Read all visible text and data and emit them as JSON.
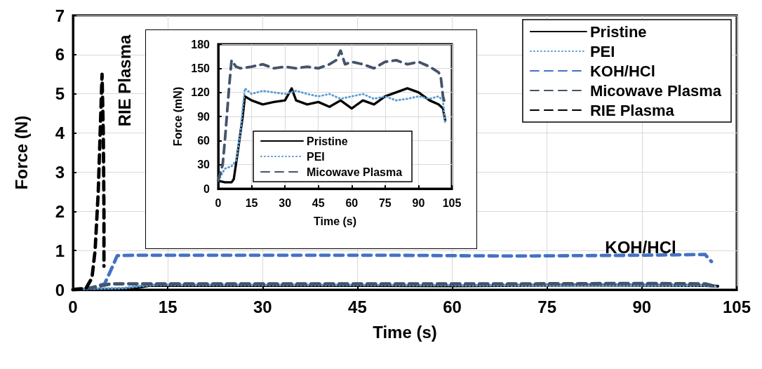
{
  "chart_data": [
    {
      "type": "line",
      "xlabel": "Time (s)",
      "ylabel": "Force (N)",
      "xlim": [
        0,
        105
      ],
      "xticks": [
        0,
        15,
        30,
        45,
        60,
        75,
        90,
        105
      ],
      "ylim": [
        0,
        7
      ],
      "yticks": [
        0,
        1,
        2,
        3,
        4,
        5,
        6,
        7
      ],
      "grid": true,
      "legend": "top right",
      "marker": "none",
      "annotations": [
        "RIE Plasma",
        "KOH/HCl"
      ],
      "series": [
        {
          "name": "Pristine",
          "color": "#000000",
          "line_style": "solid",
          "x": [
            0,
            5,
            8,
            10,
            12,
            20,
            40,
            60,
            80,
            100,
            102
          ],
          "values": [
            0.01,
            0.01,
            0.01,
            0.05,
            0.11,
            0.11,
            0.11,
            0.1,
            0.12,
            0.11,
            0.09
          ]
        },
        {
          "name": "PEI",
          "color": "#5b9bd5",
          "line_style": "dotted",
          "x": [
            0,
            5,
            8,
            11,
            13,
            30,
            50,
            70,
            90,
            100,
            102
          ],
          "values": [
            0.01,
            0.03,
            0.04,
            0.1,
            0.12,
            0.12,
            0.12,
            0.11,
            0.11,
            0.11,
            0.08
          ]
        },
        {
          "name": "KOH/HCl",
          "color": "#4472c4",
          "line_style": "dashed",
          "x": [
            0,
            3,
            4,
            5,
            6,
            7,
            10,
            30,
            50,
            70,
            90,
            100,
            100.5,
            101
          ],
          "values": [
            0,
            0.05,
            0.1,
            0.15,
            0.5,
            0.87,
            0.88,
            0.88,
            0.88,
            0.86,
            0.88,
            0.9,
            0.8,
            0.72
          ]
        },
        {
          "name": "Micowave Plasma",
          "color": "#44546a",
          "line_style": "dashed",
          "x": [
            0,
            3,
            5,
            6,
            10,
            30,
            50,
            70,
            90,
            100,
            101
          ],
          "values": [
            0.01,
            0.05,
            0.12,
            0.15,
            0.15,
            0.15,
            0.15,
            0.15,
            0.16,
            0.15,
            0.11
          ]
        },
        {
          "name": "RIE Plasma",
          "color": "#000000",
          "line_style": "dashed",
          "x": [
            0,
            2,
            3,
            3.5,
            4,
            4.3,
            4.6,
            4.8,
            4.9,
            4.9
          ],
          "values": [
            0,
            0.02,
            0.3,
            1.0,
            2.5,
            4.0,
            5.5,
            4.0,
            2.0,
            0.6
          ]
        }
      ]
    },
    {
      "type": "line",
      "xlabel": "Time (s)",
      "ylabel": "Force (mN)",
      "xlim": [
        0,
        105
      ],
      "xticks": [
        0,
        15,
        30,
        45,
        60,
        75,
        90,
        105
      ],
      "ylim": [
        0,
        180
      ],
      "yticks": [
        0,
        30,
        60,
        90,
        120,
        150,
        180
      ],
      "grid": true,
      "legend": "bottom",
      "marker": "none",
      "series": [
        {
          "name": "Pristine",
          "color": "#000000",
          "line_style": "solid",
          "x": [
            0,
            3,
            6,
            7,
            9,
            11,
            12,
            15,
            20,
            25,
            30,
            33,
            35,
            40,
            45,
            50,
            55,
            60,
            65,
            70,
            75,
            80,
            85,
            90,
            95,
            99,
            101,
            102
          ],
          "values": [
            10,
            8,
            8,
            12,
            50,
            90,
            115,
            110,
            105,
            108,
            110,
            125,
            110,
            105,
            108,
            102,
            110,
            100,
            110,
            105,
            115,
            120,
            125,
            120,
            110,
            105,
            100,
            85
          ]
        },
        {
          "name": "PEI",
          "color": "#5b9bd5",
          "line_style": "dotted",
          "x": [
            0,
            3,
            6,
            8,
            10,
            11,
            12,
            15,
            20,
            25,
            30,
            35,
            40,
            45,
            50,
            55,
            60,
            65,
            70,
            75,
            80,
            85,
            90,
            95,
            99,
            101,
            102
          ],
          "values": [
            10,
            25,
            28,
            35,
            70,
            100,
            125,
            118,
            122,
            120,
            118,
            122,
            118,
            115,
            118,
            112,
            115,
            118,
            112,
            115,
            110,
            112,
            115,
            112,
            115,
            110,
            80
          ]
        },
        {
          "name": "Micowave Plasma",
          "color": "#44546a",
          "line_style": "dashed",
          "x": [
            0,
            2,
            3,
            4,
            5,
            6,
            8,
            10,
            15,
            20,
            25,
            30,
            35,
            40,
            45,
            50,
            53,
            55,
            57,
            60,
            65,
            70,
            75,
            80,
            85,
            90,
            95,
            99,
            100,
            101,
            102
          ],
          "values": [
            10,
            30,
            60,
            95,
            130,
            160,
            152,
            150,
            152,
            155,
            150,
            152,
            150,
            152,
            150,
            155,
            160,
            172,
            155,
            158,
            155,
            150,
            158,
            160,
            155,
            158,
            152,
            145,
            140,
            115,
            105
          ]
        }
      ]
    }
  ]
}
